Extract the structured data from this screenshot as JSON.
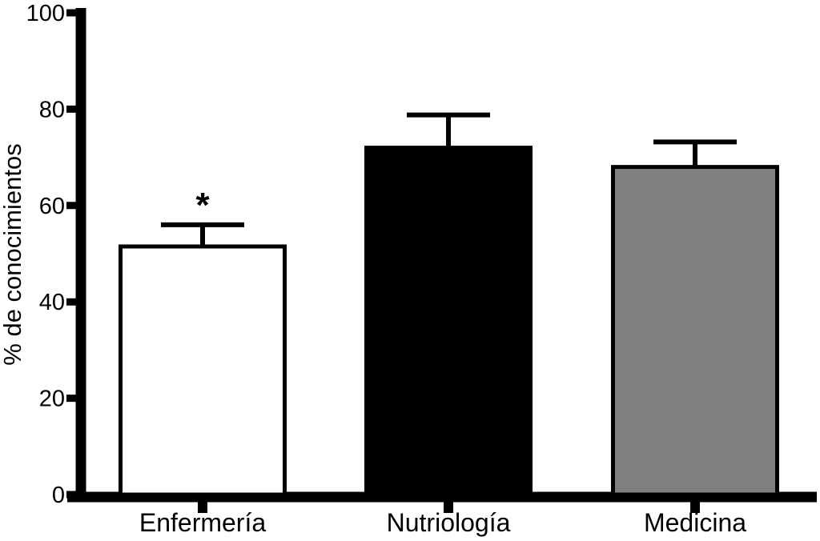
{
  "figure": {
    "background": "#ffffff",
    "axis_color": "#000000"
  },
  "chart_data": {
    "type": "bar",
    "categories": [
      "Enfermería",
      "Nutriología",
      "Medicina"
    ],
    "values": [
      51.5,
      72,
      68
    ],
    "error_plus": [
      4.5,
      6.8,
      5.2
    ],
    "bar_colors": [
      "#ffffff",
      "#000000",
      "#808080"
    ],
    "bar_edge_color": "#000000",
    "error_color": "#000000",
    "title": "",
    "xlabel": "",
    "ylabel": "% de conocimientos",
    "ylim": [
      0,
      100
    ],
    "yticks": [
      0,
      20,
      40,
      60,
      80,
      100
    ],
    "grid": false,
    "legend": null,
    "annotations": [
      {
        "text": "*",
        "category_index": 0
      }
    ]
  }
}
